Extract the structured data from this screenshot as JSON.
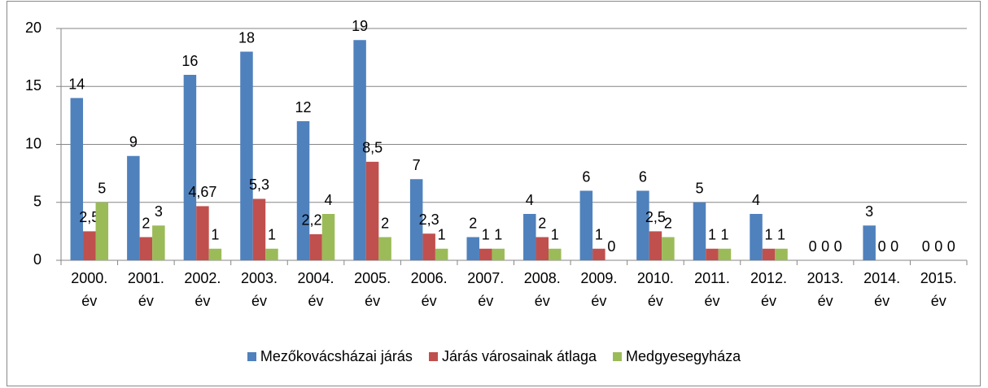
{
  "chart_data": {
    "type": "bar",
    "categories": [
      "2000. év",
      "2001. év",
      "2002. év",
      "2003. év",
      "2004. év",
      "2005. év",
      "2006. év",
      "2007. év",
      "2008. év",
      "2009. év",
      "2010. év",
      "2011. év",
      "2012. év",
      "2013. év",
      "2014. év",
      "2015. év"
    ],
    "series": [
      {
        "name": "Mezőkovácsházai járás",
        "color": "#4f81bd",
        "values": [
          14,
          9,
          16,
          18,
          12,
          19,
          7,
          2,
          4,
          6,
          6,
          5,
          4,
          0,
          3,
          0
        ]
      },
      {
        "name": "Járás városainak átlaga",
        "color": "#c0504d",
        "values": [
          2.5,
          2,
          4.67,
          5.3,
          2.25,
          8.5,
          2.3,
          1,
          2,
          1,
          2.5,
          1,
          1,
          0,
          0,
          0
        ],
        "value_labels": [
          "2,5",
          "2",
          "4,67",
          "5,3",
          "2,25",
          "8,5",
          "2,3",
          "1",
          "2",
          "1",
          "2,5",
          "1",
          "1",
          "0",
          "0",
          "0"
        ]
      },
      {
        "name": "Medgyesegyháza",
        "color": "#9bbb59",
        "values": [
          5,
          3,
          1,
          1,
          4,
          2,
          1,
          1,
          1,
          0,
          2,
          1,
          1,
          0,
          0,
          0
        ]
      }
    ],
    "ylim": [
      0,
      20
    ],
    "yticks": [
      0,
      5,
      10,
      15,
      20
    ],
    "grid": true,
    "legend": "bottom"
  }
}
